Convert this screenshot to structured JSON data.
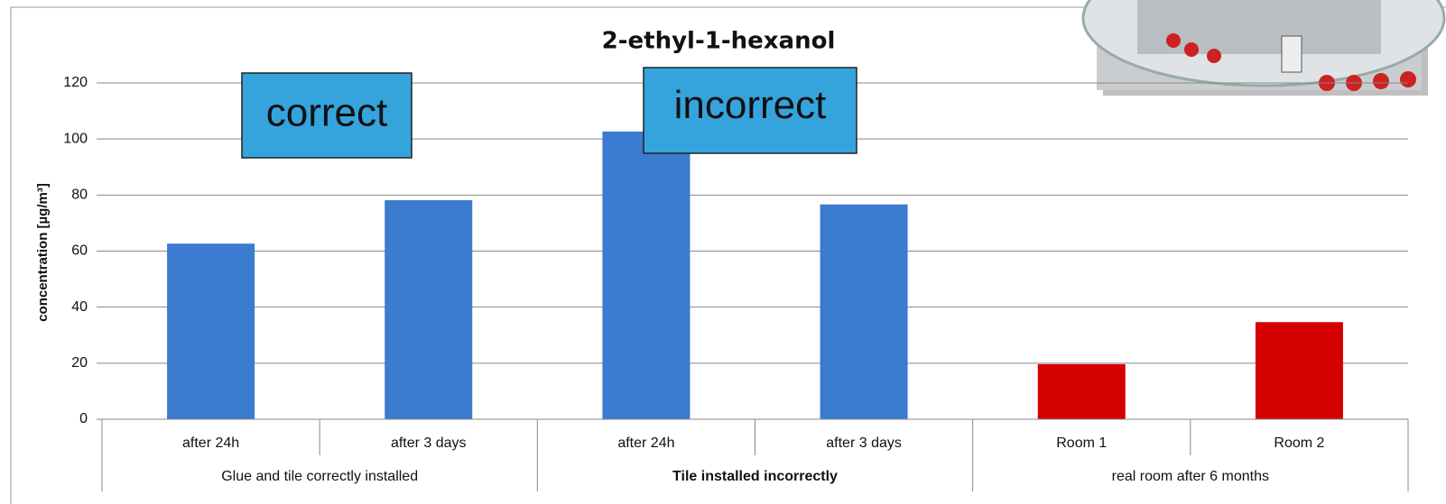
{
  "chart_data": {
    "type": "bar",
    "title": "2-ethyl-1-hexanol",
    "y_label": "concentration [µg/m³]",
    "categories": [
      "after 24h",
      "after 3 days",
      "after 24h",
      "after 3 days",
      "Room 1",
      "Room 2"
    ],
    "groups": [
      "Glue and tile correctly installed",
      "Tile installed incorrectly",
      "real room after 6 months"
    ],
    "values": [
      62.5,
      78,
      102.5,
      76.5,
      19.5,
      34.5
    ],
    "colors": [
      "#3b7bd0",
      "#3b7bd0",
      "#3b7bd0",
      "#3b7bd0",
      "#d40000",
      "#d40000"
    ],
    "ylim": [
      0,
      120
    ],
    "yticks": [
      0,
      20,
      40,
      60,
      80,
      100,
      120
    ],
    "grid": true,
    "annotations": [
      "correct",
      "incorrect"
    ]
  }
}
